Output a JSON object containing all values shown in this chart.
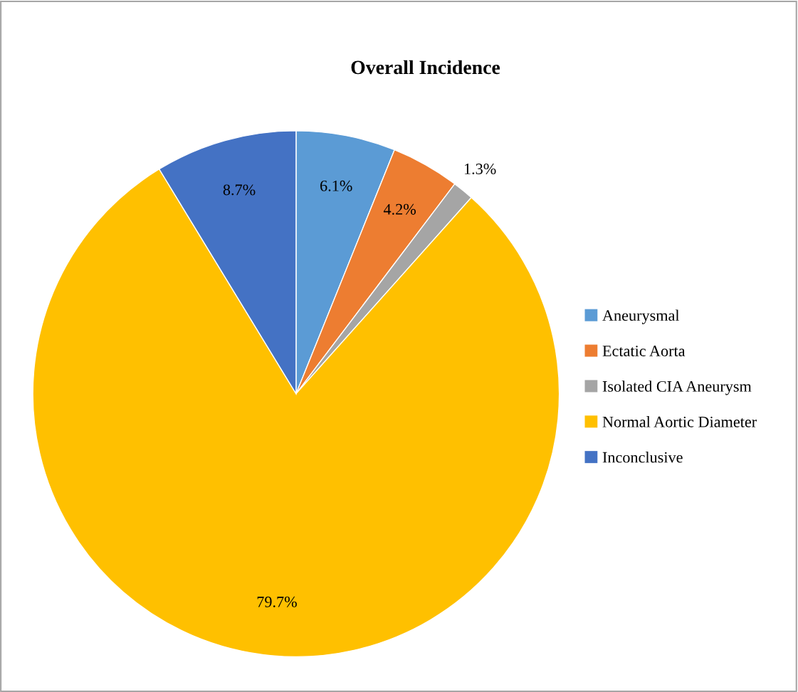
{
  "chart_data": {
    "type": "pie",
    "title": "Overall Incidence",
    "categories": [
      "Aneurysmal",
      "Ectatic Aorta",
      "Isolated CIA Aneurysm",
      "Normal Aortic Diameter",
      "Inconclusive"
    ],
    "values": [
      6.1,
      4.2,
      1.3,
      79.7,
      8.7
    ],
    "colors": [
      "#5b9bd5",
      "#ed7d31",
      "#a5a5a5",
      "#ffc000",
      "#4472c4"
    ],
    "value_labels": [
      "6.1%",
      "4.2%",
      "1.3%",
      "79.7%",
      "8.7%"
    ],
    "legend": "right"
  }
}
